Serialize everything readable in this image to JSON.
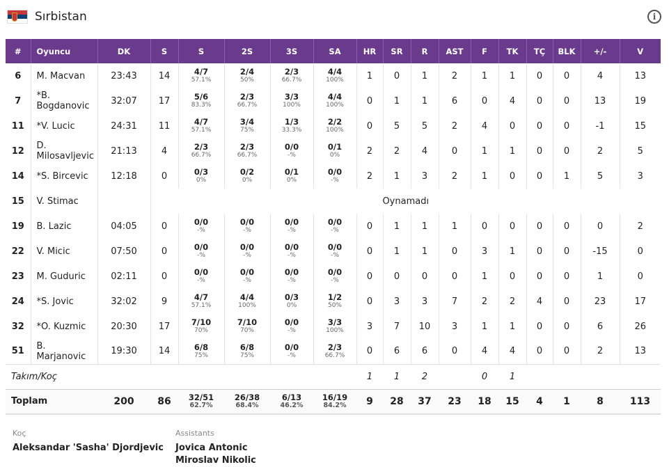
{
  "team": {
    "name": "Sırbistan",
    "flag": "serbia-flag"
  },
  "columns": [
    "#",
    "Oyuncu",
    "DK",
    "S",
    "S",
    "2S",
    "3S",
    "SA",
    "HR",
    "SR",
    "R",
    "AST",
    "F",
    "TK",
    "TÇ",
    "BLK",
    "+/-",
    "V"
  ],
  "players": [
    {
      "no": "6",
      "name": "M. Macvan",
      "min": "23:43",
      "pts": "14",
      "fg": "4/7",
      "fgp": "57.1%",
      "fg2": "2/4",
      "fg2p": "50%",
      "fg3": "2/3",
      "fg3p": "66.7%",
      "ft": "4/4",
      "ftp": "100%",
      "oreb": "1",
      "dreb": "0",
      "reb": "1",
      "ast": "2",
      "pf": "1",
      "to": "1",
      "stl": "0",
      "blk": "0",
      "pm": "4",
      "eff": "13"
    },
    {
      "no": "7",
      "name": "*B. Bogdanovic",
      "min": "32:07",
      "pts": "17",
      "fg": "5/6",
      "fgp": "83.3%",
      "fg2": "2/3",
      "fg2p": "66.7%",
      "fg3": "3/3",
      "fg3p": "100%",
      "ft": "4/4",
      "ftp": "100%",
      "oreb": "0",
      "dreb": "1",
      "reb": "1",
      "ast": "6",
      "pf": "0",
      "to": "4",
      "stl": "0",
      "blk": "0",
      "pm": "13",
      "eff": "19"
    },
    {
      "no": "11",
      "name": "*V. Lucic",
      "min": "24:31",
      "pts": "11",
      "fg": "4/7",
      "fgp": "57.1%",
      "fg2": "3/4",
      "fg2p": "75%",
      "fg3": "1/3",
      "fg3p": "33.3%",
      "ft": "2/2",
      "ftp": "100%",
      "oreb": "0",
      "dreb": "5",
      "reb": "5",
      "ast": "2",
      "pf": "4",
      "to": "0",
      "stl": "0",
      "blk": "0",
      "pm": "-1",
      "eff": "15"
    },
    {
      "no": "12",
      "name": "D. Milosavljevic",
      "min": "21:13",
      "pts": "4",
      "fg": "2/3",
      "fgp": "66.7%",
      "fg2": "2/3",
      "fg2p": "66.7%",
      "fg3": "0/0",
      "fg3p": "-%",
      "ft": "0/1",
      "ftp": "0%",
      "oreb": "2",
      "dreb": "2",
      "reb": "4",
      "ast": "0",
      "pf": "1",
      "to": "1",
      "stl": "0",
      "blk": "0",
      "pm": "2",
      "eff": "5"
    },
    {
      "no": "14",
      "name": "*S. Bircevic",
      "min": "12:18",
      "pts": "0",
      "fg": "0/3",
      "fgp": "0%",
      "fg2": "0/2",
      "fg2p": "0%",
      "fg3": "0/1",
      "fg3p": "0%",
      "ft": "0/0",
      "ftp": "-%",
      "oreb": "2",
      "dreb": "1",
      "reb": "3",
      "ast": "2",
      "pf": "1",
      "to": "0",
      "stl": "0",
      "blk": "1",
      "pm": "5",
      "eff": "3"
    },
    {
      "no": "15",
      "name": "V. Stimac",
      "dnp": "Oynamadı"
    },
    {
      "no": "19",
      "name": "B. Lazic",
      "min": "04:05",
      "pts": "0",
      "fg": "0/0",
      "fgp": "-%",
      "fg2": "0/0",
      "fg2p": "-%",
      "fg3": "0/0",
      "fg3p": "-%",
      "ft": "0/0",
      "ftp": "-%",
      "oreb": "0",
      "dreb": "1",
      "reb": "1",
      "ast": "1",
      "pf": "0",
      "to": "0",
      "stl": "0",
      "blk": "0",
      "pm": "0",
      "eff": "2"
    },
    {
      "no": "22",
      "name": "V. Micic",
      "min": "07:50",
      "pts": "0",
      "fg": "0/0",
      "fgp": "-%",
      "fg2": "0/0",
      "fg2p": "-%",
      "fg3": "0/0",
      "fg3p": "-%",
      "ft": "0/0",
      "ftp": "-%",
      "oreb": "0",
      "dreb": "1",
      "reb": "1",
      "ast": "0",
      "pf": "3",
      "to": "1",
      "stl": "0",
      "blk": "0",
      "pm": "-15",
      "eff": "0"
    },
    {
      "no": "23",
      "name": "M. Guduric",
      "min": "02:11",
      "pts": "0",
      "fg": "0/0",
      "fgp": "-%",
      "fg2": "0/0",
      "fg2p": "-%",
      "fg3": "0/0",
      "fg3p": "-%",
      "ft": "0/0",
      "ftp": "-%",
      "oreb": "0",
      "dreb": "0",
      "reb": "0",
      "ast": "0",
      "pf": "1",
      "to": "0",
      "stl": "0",
      "blk": "0",
      "pm": "1",
      "eff": "0"
    },
    {
      "no": "24",
      "name": "*S. Jovic",
      "min": "32:02",
      "pts": "9",
      "fg": "4/7",
      "fgp": "57.1%",
      "fg2": "4/4",
      "fg2p": "100%",
      "fg3": "0/3",
      "fg3p": "0%",
      "ft": "1/2",
      "ftp": "50%",
      "oreb": "0",
      "dreb": "3",
      "reb": "3",
      "ast": "7",
      "pf": "2",
      "to": "2",
      "stl": "4",
      "blk": "0",
      "pm": "23",
      "eff": "17"
    },
    {
      "no": "32",
      "name": "*O. Kuzmic",
      "min": "20:30",
      "pts": "17",
      "fg": "7/10",
      "fgp": "70%",
      "fg2": "7/10",
      "fg2p": "70%",
      "fg3": "0/0",
      "fg3p": "-%",
      "ft": "3/3",
      "ftp": "100%",
      "oreb": "3",
      "dreb": "7",
      "reb": "10",
      "ast": "3",
      "pf": "1",
      "to": "1",
      "stl": "0",
      "blk": "0",
      "pm": "6",
      "eff": "26"
    },
    {
      "no": "51",
      "name": "B. Marjanovic",
      "min": "19:30",
      "pts": "14",
      "fg": "6/8",
      "fgp": "75%",
      "fg2": "6/8",
      "fg2p": "75%",
      "fg3": "0/0",
      "fg3p": "-%",
      "ft": "2/3",
      "ftp": "66.7%",
      "oreb": "0",
      "dreb": "6",
      "reb": "6",
      "ast": "0",
      "pf": "4",
      "to": "4",
      "stl": "0",
      "blk": "0",
      "pm": "2",
      "eff": "13"
    }
  ],
  "team_row": {
    "label": "Takım/Koç",
    "oreb": "1",
    "dreb": "1",
    "reb": "2",
    "pf": "0",
    "to": "1"
  },
  "totals": {
    "label": "Toplam",
    "min": "200",
    "pts": "86",
    "fg": "32/51",
    "fgp": "62.7%",
    "fg2": "26/38",
    "fg2p": "68.4%",
    "fg3": "6/13",
    "fg3p": "46.2%",
    "ft": "16/19",
    "ftp": "84.2%",
    "oreb": "9",
    "dreb": "28",
    "reb": "37",
    "ast": "23",
    "pf": "18",
    "to": "15",
    "stl": "4",
    "blk": "1",
    "pm": "8",
    "eff": "113"
  },
  "coach": {
    "label": "Koç",
    "name": "Aleksandar 'Sasha' Djordjevic"
  },
  "assistants": {
    "label": "Assistants",
    "names": [
      "Jovica Antonic",
      "Miroslav Nikolic"
    ]
  },
  "colors": {
    "header_bg": "#6a3b8c",
    "header_text": "#ffffff"
  }
}
